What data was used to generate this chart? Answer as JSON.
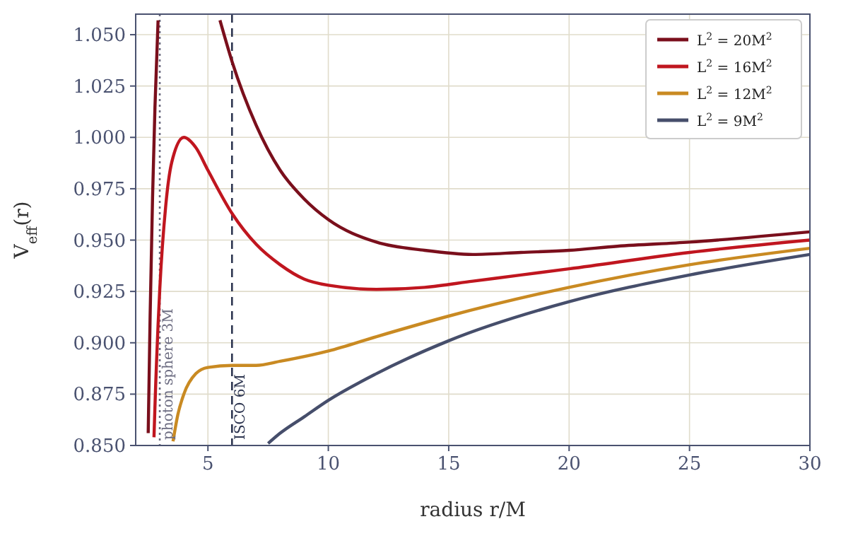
{
  "chart_data": {
    "type": "line",
    "xlabel": "radius r/M",
    "ylabel": "V$_{eff}$(r)",
    "xlim": [
      2,
      30
    ],
    "xticks": [
      5,
      10,
      15,
      20,
      25,
      30
    ],
    "ylim": [
      0.85,
      1.06
    ],
    "yticks": [
      {
        "value": 0.85,
        "label": "0.850"
      },
      {
        "value": 0.875,
        "label": "0.875"
      },
      {
        "value": 0.9,
        "label": "0.900"
      },
      {
        "value": 0.925,
        "label": "0.925"
      },
      {
        "value": 0.95,
        "label": "0.950"
      },
      {
        "value": 0.975,
        "label": "0.975"
      },
      {
        "value": 1.0,
        "label": "1.000"
      },
      {
        "value": 1.025,
        "label": "1.025"
      },
      {
        "value": 1.05,
        "label": "1.050"
      }
    ],
    "grid": true,
    "legend": "top right",
    "line_style": "solid",
    "marker": "none",
    "series": [
      {
        "name": "L$^{2}$ = 20M$^{2}$",
        "color": "#7a0f1c",
        "x": [
          2.52,
          2.6,
          2.7,
          2.8,
          2.93,
          4,
          5.5,
          6,
          7,
          8,
          9,
          10,
          12,
          14,
          16,
          18,
          20,
          22,
          25,
          30
        ],
        "values": [
          0.856,
          0.9135,
          0.9705,
          1.0146,
          1.057,
          null,
          1.057,
          1.037,
          1.006,
          0.984,
          0.97,
          0.96,
          0.949,
          0.945,
          0.943,
          0.944,
          0.945,
          0.947,
          0.949,
          0.954
        ]
      },
      {
        "name": "L$^{2}$ = 16M$^{2}$",
        "color": "#c0161f",
        "x": [
          2.76,
          2.8,
          3,
          3.25,
          3.5,
          4,
          4.5,
          5,
          6,
          7,
          8,
          9,
          10,
          12,
          14,
          16,
          18,
          20,
          25,
          30
        ],
        "values": [
          0.854,
          0.869,
          0.926,
          0.967,
          0.988,
          1.0,
          0.995,
          0.984,
          0.963,
          0.948,
          0.938,
          0.931,
          0.928,
          0.926,
          0.927,
          0.93,
          0.933,
          0.936,
          0.944,
          0.95
        ]
      },
      {
        "name": "L$^{2}$ = 12M$^{2}$",
        "color": "#c98a22",
        "x": [
          3.55,
          3.75,
          4,
          4.5,
          5,
          6,
          7,
          8,
          10,
          12,
          15,
          20,
          25,
          30
        ],
        "values": [
          0.852,
          0.865,
          0.875,
          0.885,
          0.888,
          0.889,
          0.889,
          0.891,
          0.896,
          0.903,
          0.913,
          0.927,
          0.938,
          0.946
        ]
      },
      {
        "name": "L$^{2}$ = 9M$^{2}$",
        "color": "#464e6b",
        "x": [
          7.5,
          8,
          9,
          10,
          12,
          15,
          20,
          25,
          30
        ],
        "values": [
          0.851,
          0.856,
          0.864,
          0.872,
          0.885,
          0.901,
          0.92,
          0.933,
          0.943
        ]
      }
    ],
    "ref_lines": [
      {
        "axis": "x",
        "value": 3,
        "label": "photon sphere 3M",
        "line_style": "dotted",
        "color": "#6b6b80"
      },
      {
        "axis": "x",
        "value": 6,
        "label": "ISCO 6M",
        "line_style": "dashed",
        "color": "#2d3550"
      }
    ]
  }
}
